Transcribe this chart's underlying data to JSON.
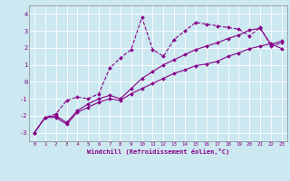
{
  "xlabel": "Windchill (Refroidissement éolien,°C)",
  "bg_color": "#cce8f0",
  "line_color": "#880088",
  "xlim": [
    -0.5,
    23.5
  ],
  "ylim": [
    -3.5,
    4.5
  ],
  "xticks": [
    0,
    1,
    2,
    3,
    4,
    5,
    6,
    7,
    8,
    9,
    10,
    11,
    12,
    13,
    14,
    15,
    16,
    17,
    18,
    19,
    20,
    21,
    22,
    23
  ],
  "yticks": [
    -3,
    -2,
    -1,
    0,
    1,
    2,
    3,
    4
  ],
  "series": [
    {
      "x": [
        0,
        1,
        2,
        3,
        4,
        5,
        6,
        7,
        8,
        9,
        10,
        11,
        12,
        13,
        14,
        15,
        16,
        17,
        18,
        19,
        20,
        21,
        22,
        23
      ],
      "y": [
        -3.0,
        -2.1,
        -2.1,
        -2.5,
        -1.8,
        -1.5,
        -1.2,
        -1.0,
        -1.1,
        -0.7,
        -0.4,
        -0.1,
        0.2,
        0.5,
        0.7,
        0.95,
        1.05,
        1.2,
        1.5,
        1.7,
        1.95,
        2.1,
        2.25,
        1.95
      ],
      "marker": true,
      "linestyle": "-"
    },
    {
      "x": [
        0,
        1,
        2,
        3,
        4,
        5,
        6,
        7,
        8,
        9,
        10,
        11,
        12,
        13,
        14,
        15,
        16,
        17,
        18,
        19,
        20,
        21,
        22,
        23
      ],
      "y": [
        -3.0,
        -2.1,
        -2.0,
        -2.4,
        -1.7,
        -1.3,
        -1.0,
        -0.8,
        -1.0,
        -0.4,
        0.2,
        0.6,
        1.0,
        1.3,
        1.6,
        1.9,
        2.1,
        2.3,
        2.55,
        2.75,
        3.05,
        3.15,
        2.2,
        2.4
      ],
      "marker": true,
      "linestyle": "-"
    },
    {
      "x": [
        0,
        1,
        2,
        3,
        4,
        5,
        6,
        7,
        8,
        9,
        10,
        11,
        12,
        13,
        14,
        15,
        16,
        17,
        18,
        19,
        20,
        21,
        22,
        23
      ],
      "y": [
        -3.0,
        -2.1,
        -1.9,
        -1.1,
        -0.9,
        -1.0,
        -0.7,
        0.8,
        1.4,
        1.9,
        3.8,
        1.9,
        1.5,
        2.5,
        3.0,
        3.5,
        3.4,
        3.3,
        3.2,
        3.1,
        2.7,
        3.2,
        2.1,
        2.3
      ],
      "marker": true,
      "linestyle": "--"
    }
  ]
}
